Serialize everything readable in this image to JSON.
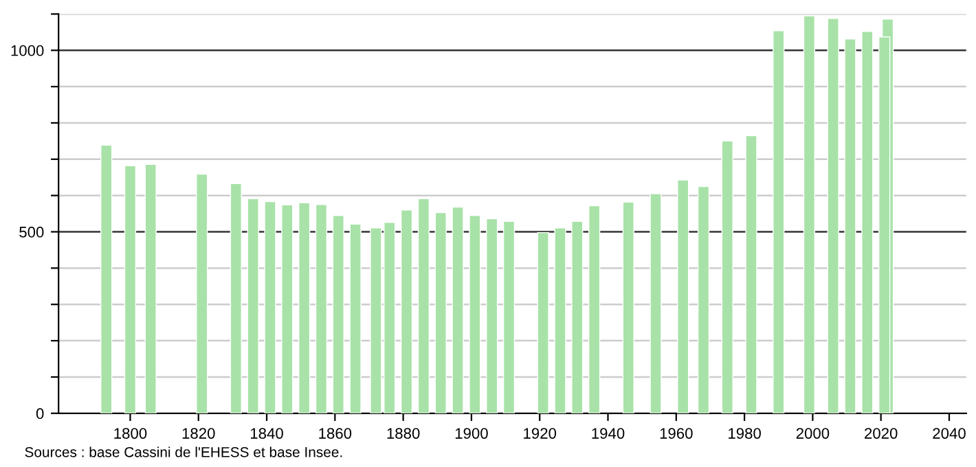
{
  "chart_data": {
    "type": "bar",
    "x": [
      1793,
      1800,
      1806,
      1821,
      1831,
      1836,
      1841,
      1846,
      1851,
      1856,
      1861,
      1866,
      1872,
      1876,
      1881,
      1886,
      1891,
      1896,
      1901,
      1906,
      1911,
      1921,
      1926,
      1931,
      1936,
      1946,
      1954,
      1962,
      1968,
      1975,
      1982,
      1990,
      1999,
      2006,
      2011,
      2016,
      2021,
      2022
    ],
    "values": [
      739,
      682,
      686,
      659,
      633,
      591,
      583,
      574,
      580,
      575,
      545,
      521,
      511,
      526,
      560,
      591,
      553,
      568,
      545,
      536,
      529,
      498,
      511,
      529,
      572,
      582,
      605,
      643,
      625,
      750,
      765,
      1054,
      1095,
      1088,
      1031,
      1052,
      1037,
      1086
    ],
    "color": "#a8e2a8",
    "xlim": [
      1779,
      2045
    ],
    "xticks": [
      1800,
      1820,
      1840,
      1860,
      1880,
      1900,
      1920,
      1940,
      1960,
      1980,
      2000,
      2020,
      2040
    ],
    "ylim": [
      0,
      1100
    ],
    "yticks": [
      0,
      {
        "value": 100,
        "label": null
      },
      {
        "value": 200,
        "label": null
      },
      {
        "value": 300,
        "label": null
      },
      {
        "value": 400,
        "label": null
      },
      500,
      {
        "value": 600,
        "label": null
      },
      {
        "value": 700,
        "label": null
      },
      {
        "value": 800,
        "label": null
      },
      {
        "value": 900,
        "label": null
      },
      1000,
      {
        "value": 1100,
        "label": null
      }
    ],
    "grid": "y",
    "annotations": [
      "Sources : base Cassini de l'EHESS et base Insee."
    ]
  }
}
